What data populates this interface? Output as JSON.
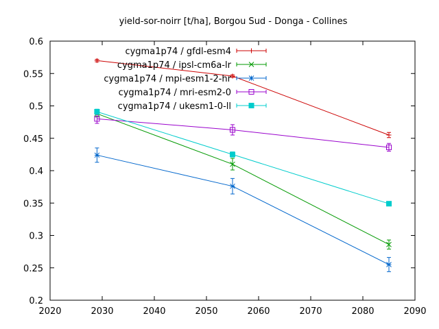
{
  "chart_data": {
    "type": "line",
    "title": "yield-sor-noirr [t/ha], Borgou Sud - Donga - Collines",
    "xlabel": "",
    "ylabel": "",
    "xlim": [
      2020,
      2090
    ],
    "ylim": [
      0.2,
      0.6
    ],
    "xticks": [
      2020,
      2030,
      2040,
      2050,
      2060,
      2070,
      2080,
      2090
    ],
    "yticks": [
      0.2,
      0.25,
      0.3,
      0.35,
      0.4,
      0.45,
      0.5,
      0.55,
      0.6
    ],
    "ytick_labels": [
      "0.2",
      "0.25",
      "0.3",
      "0.35",
      "0.4",
      "0.45",
      "0.5",
      "0.55",
      "0.6"
    ],
    "legend_position": "top-left",
    "grid": false,
    "series": [
      {
        "name": "cygma1p74 / gfdl-esm4",
        "color": "#cc0000",
        "marker": "plus",
        "x": [
          2029,
          2055,
          2085
        ],
        "y": [
          0.57,
          0.546,
          0.455
        ],
        "err": [
          0.002,
          0.002,
          0.004
        ]
      },
      {
        "name": "cygma1p74 / ipsl-cm6a-lr",
        "color": "#009900",
        "marker": "cross",
        "x": [
          2029,
          2055,
          2085
        ],
        "y": [
          0.488,
          0.41,
          0.286
        ],
        "err": [
          0.005,
          0.009,
          0.007
        ]
      },
      {
        "name": "cygma1p74 / mpi-esm1-2-hr",
        "color": "#0066cc",
        "marker": "star",
        "x": [
          2029,
          2055,
          2085
        ],
        "y": [
          0.424,
          0.376,
          0.255
        ],
        "err": [
          0.011,
          0.012,
          0.011
        ]
      },
      {
        "name": "cygma1p74 / mri-esm2-0",
        "color": "#9900cc",
        "marker": "square-open",
        "x": [
          2029,
          2055,
          2085
        ],
        "y": [
          0.48,
          0.463,
          0.436
        ],
        "err": [
          0.007,
          0.008,
          0.006
        ]
      },
      {
        "name": "cygma1p74 / ukesm1-0-ll",
        "color": "#00cccc",
        "marker": "square-filled",
        "x": [
          2029,
          2055,
          2085
        ],
        "y": [
          0.491,
          0.425,
          0.349
        ],
        "err": [
          0.004,
          0.004,
          0.002
        ]
      }
    ]
  }
}
